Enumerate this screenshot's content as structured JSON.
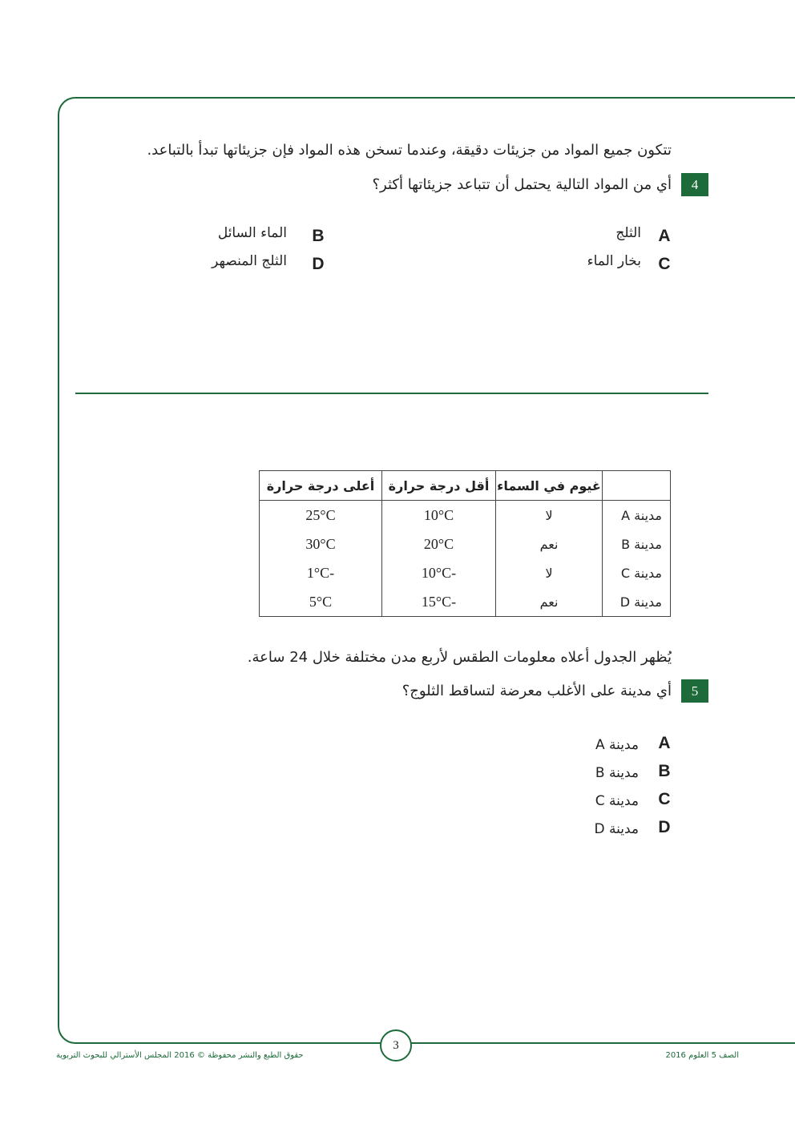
{
  "q4": {
    "number": "4",
    "intro": "تتكون جميع المواد من جزيئات دقيقة، وعندما تسخن هذه المواد فإن جزيئاتها تبدأ بالتباعد.",
    "question": "أي من المواد التالية يحتمل أن تتباعد جزيئاتها أكثر؟",
    "options": [
      {
        "letter": "A",
        "text": "الثلج"
      },
      {
        "letter": "B",
        "text": "الماء السائل"
      },
      {
        "letter": "C",
        "text": "بخار الماء"
      },
      {
        "letter": "D",
        "text": "الثلج المنصهر"
      }
    ]
  },
  "table": {
    "headers": [
      "",
      "غيوم في السماء",
      "أقل درجة حرارة",
      "أعلى درجة حرارة"
    ],
    "rows": [
      [
        "مدينة A",
        "لا",
        "10°C",
        "25°C"
      ],
      [
        "مدينة B",
        "نعم",
        "20°C",
        "30°C"
      ],
      [
        "مدينة C",
        "لا",
        "-10°C",
        "-1°C"
      ],
      [
        "مدينة D",
        "نعم",
        "-15°C",
        "5°C"
      ]
    ]
  },
  "q5": {
    "number": "5",
    "intro": "يُظهر الجدول أعلاه معلومات الطقس لأربع مدن مختلفة خلال 24 ساعة.",
    "question": "أي مدينة على الأغلب معرضة لتساقط الثلوج؟",
    "options": [
      {
        "letter": "A",
        "text": "مدينة A"
      },
      {
        "letter": "B",
        "text": "مدينة B"
      },
      {
        "letter": "C",
        "text": "مدينة C"
      },
      {
        "letter": "D",
        "text": "مدينة D"
      }
    ]
  },
  "footer": {
    "page_number": "3",
    "left": "حقوق الطبع والنشر محفوظة © 2016 المجلس الأسترالي للبحوث التربوية",
    "right": "الصف 5 العلوم 2016"
  },
  "colors": {
    "accent": "#1d6b3a"
  }
}
